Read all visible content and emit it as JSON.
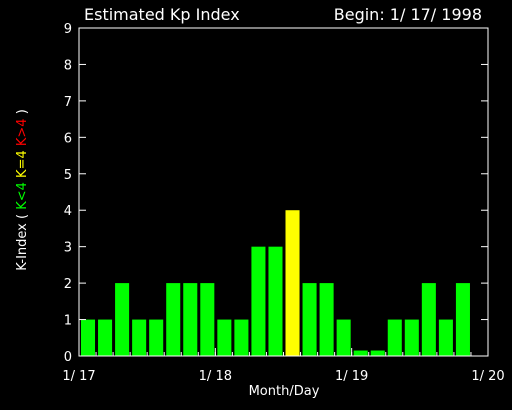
{
  "header": {
    "title": "Estimated Kp Index",
    "begin": "Begin: 1/ 17/ 1998"
  },
  "chart_data": {
    "type": "bar",
    "title": "Estimated Kp Index",
    "subtitle": "Begin: 1/ 17/ 1998",
    "xlabel": "Month/Day",
    "ylabel": "K-Index",
    "ylabel_parts": [
      {
        "text": "K-Index ( ",
        "color": "#ffffff"
      },
      {
        "text": "K<4",
        "color": "#00ff00"
      },
      {
        "text": " K=4 ",
        "color": "#ffff00"
      },
      {
        "text": "K>4",
        "color": "#ff0000"
      },
      {
        "text": " )",
        "color": "#ffffff"
      }
    ],
    "ylim": [
      0,
      9
    ],
    "yticks": [
      0,
      1,
      2,
      3,
      4,
      5,
      6,
      7,
      8,
      9
    ],
    "xlim": [
      0,
      24
    ],
    "xticks": [
      {
        "pos": 0,
        "label": "1/ 17"
      },
      {
        "pos": 8,
        "label": "1/ 18"
      },
      {
        "pos": 16,
        "label": "1/ 19"
      },
      {
        "pos": 24,
        "label": "1/ 20"
      }
    ],
    "values": [
      1,
      1,
      2,
      1,
      1,
      2,
      2,
      2,
      1,
      1,
      3,
      3,
      4,
      2,
      2,
      1,
      0.15,
      0.15,
      1,
      1,
      2,
      1,
      2,
      0
    ],
    "colors": {
      "low": "#00ff00",
      "equal": "#ffff00",
      "high": "#ff0000",
      "axis": "#ffffff",
      "background": "#000000"
    }
  }
}
